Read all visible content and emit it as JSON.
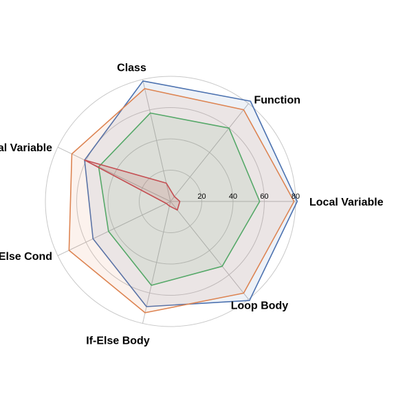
{
  "chart_data": {
    "type": "radar",
    "axes": [
      "Local Variable",
      "Function",
      "Class",
      "Global Variable",
      "If-Else Cond",
      "If-Else Body",
      "Loop Body"
    ],
    "rlim": [
      0,
      80
    ],
    "r_ticks": [
      20,
      40,
      60,
      80
    ],
    "tick_labels": [
      "20",
      "40",
      "60",
      "80"
    ],
    "grid": true,
    "series": [
      {
        "color": "#4c72b0",
        "fill_opacity": 0.1,
        "values": [
          81,
          82,
          79,
          61,
          55,
          69,
          81
        ]
      },
      {
        "color": "#dd8452",
        "fill_opacity": 0.1,
        "values": [
          79,
          75,
          74,
          70,
          72,
          73,
          75
        ]
      },
      {
        "color": "#55a868",
        "fill_opacity": 0.1,
        "values": [
          57,
          60,
          58,
          51,
          44,
          55,
          53
        ]
      },
      {
        "color": "#c44e52",
        "fill_opacity": 0.15,
        "values": [
          6,
          4,
          12,
          61,
          3,
          3,
          7
        ]
      }
    ]
  }
}
